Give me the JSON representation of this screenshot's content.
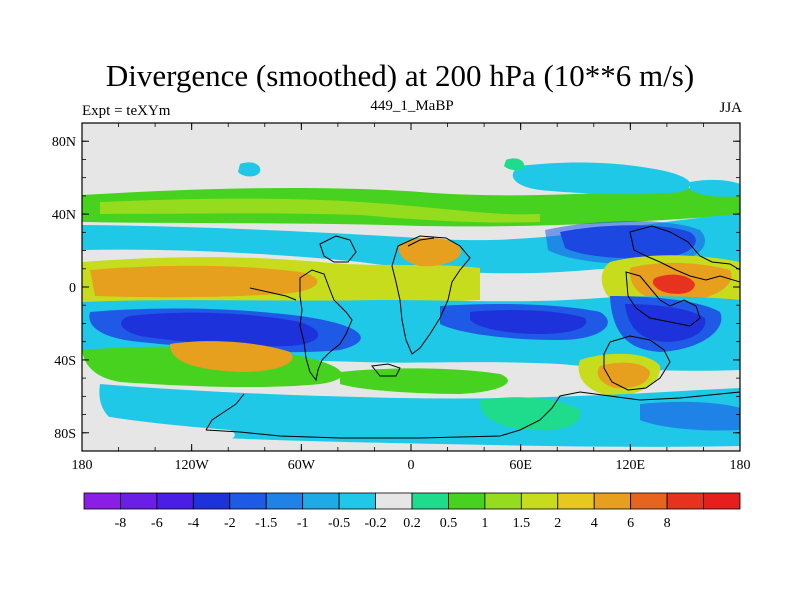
{
  "title": "Divergence (smoothed) at 200 hPa (10**6 m/s)",
  "left_label": "Expt = teXYm",
  "center_label": "449_1_MaBP",
  "right_label": "JJA",
  "lat_ticks": [
    {
      "label": "80N",
      "value": 80
    },
    {
      "label": "40N",
      "value": 40
    },
    {
      "label": "0",
      "value": 0
    },
    {
      "label": "40S",
      "value": -40
    },
    {
      "label": "80S",
      "value": -80
    }
  ],
  "lon_ticks": [
    {
      "label": "180",
      "value": -180
    },
    {
      "label": "120W",
      "value": -120
    },
    {
      "label": "60W",
      "value": -60
    },
    {
      "label": "0",
      "value": 0
    },
    {
      "label": "60E",
      "value": 60
    },
    {
      "label": "120E",
      "value": 120
    },
    {
      "label": "180",
      "value": 180
    }
  ],
  "colorbar": {
    "colors": [
      "#8a1ee6",
      "#6a1ee6",
      "#4a1ee6",
      "#1e32dc",
      "#1e5ae6",
      "#1e82e6",
      "#1eaae6",
      "#1ec8e6",
      "#e6e6e6",
      "#1edc8c",
      "#46d21e",
      "#96dc1e",
      "#c8dc1e",
      "#e6c81e",
      "#e6a01e",
      "#e6641e",
      "#e6321e",
      "#e61e1e"
    ],
    "labels": [
      "-8",
      "-6",
      "-4",
      "-2",
      "-1.5",
      "-1",
      "-0.5",
      "-0.2",
      "0.2",
      "0.5",
      "1",
      "1.5",
      "2",
      "4",
      "6",
      "8"
    ]
  },
  "map_colors": {
    "neutral": "#e6e6e6",
    "cyan": "#1ec8e6",
    "light_blue": "#1eaae6",
    "mid_blue": "#1e82e6",
    "blue": "#1e5ae6",
    "deep_blue": "#1e32dc",
    "green": "#1edc8c",
    "lime": "#46d21e",
    "yellow_green": "#96dc1e",
    "yellow": "#c8dc1e",
    "orange": "#e6a01e",
    "red": "#e6321e"
  }
}
